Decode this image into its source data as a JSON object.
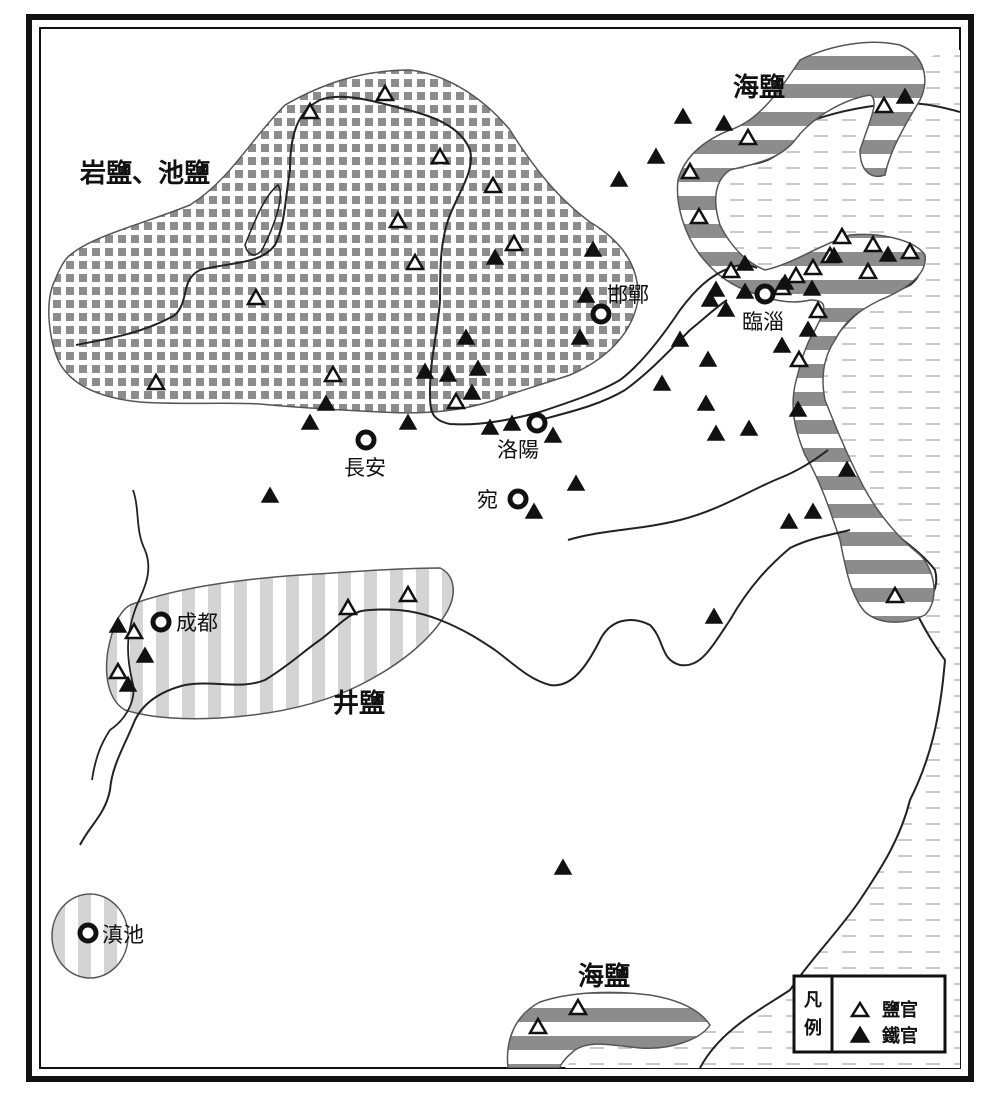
{
  "regions": {
    "rock_pond_salt": "岩鹽、池鹽",
    "sea_salt_north": "海鹽",
    "sea_salt_south": "海鹽",
    "well_salt": "井鹽"
  },
  "cities": {
    "handan": "邯鄲",
    "linzi": "臨淄",
    "luoyang": "洛陽",
    "changan": "長安",
    "wan": "宛",
    "chengdu": "成都",
    "dianchi": "滇池"
  },
  "legend": {
    "title_line1": "凡",
    "title_line2": "例",
    "salt_office": "鹽官",
    "iron_office": "鐵官",
    "salt_symbol": "△",
    "iron_symbol": "▲"
  },
  "colors": {
    "land": "#ffffff",
    "sea_dash": "#b8b8b8",
    "pattern_gray": "#8c8c8c",
    "light_stripe": "#d4d4d4",
    "outline": "#111111"
  }
}
